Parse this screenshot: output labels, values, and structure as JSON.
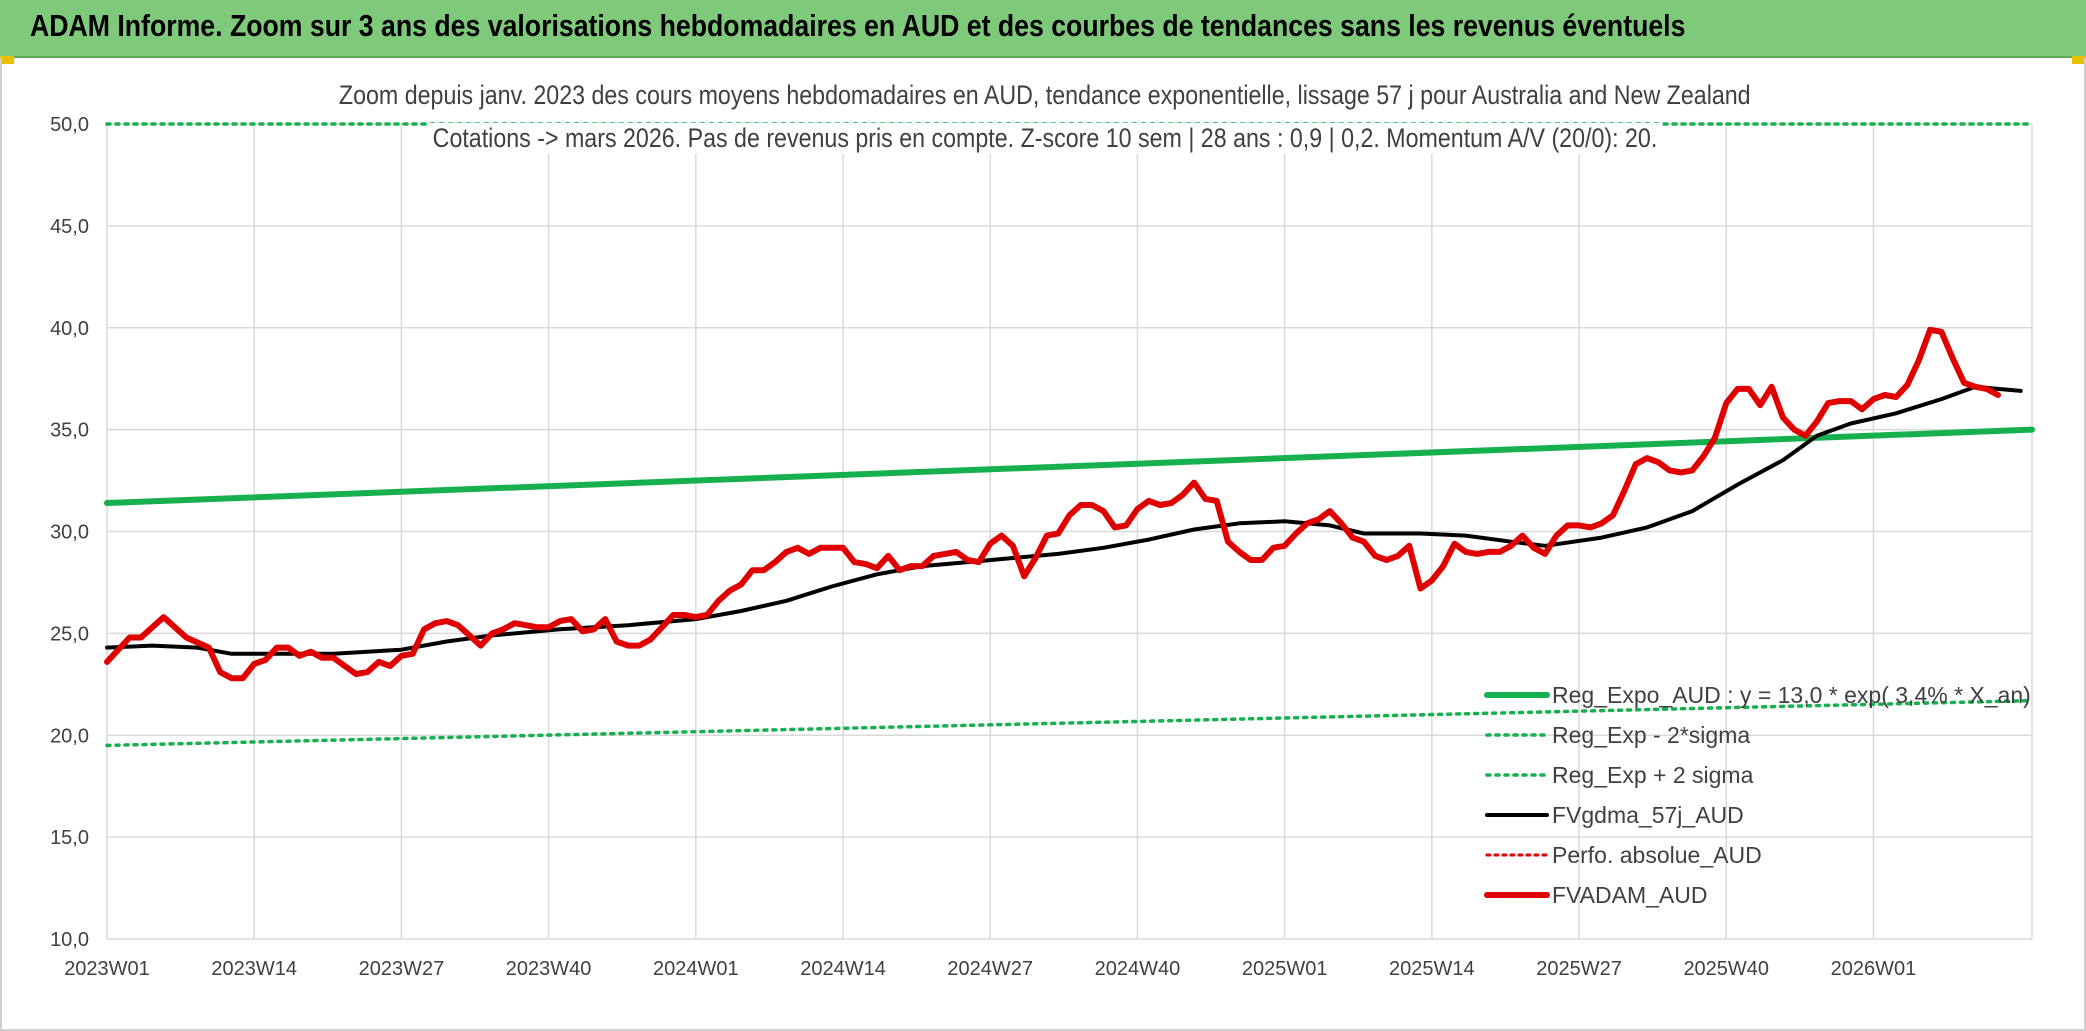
{
  "header": {
    "title": "ADAM Informe. Zoom sur 3 ans des valorisations hebdomadaires en AUD et des courbes de tendances sans les revenus éventuels"
  },
  "colors": {
    "header_bg": "#7fc97a",
    "reg_expo": "#17b04f",
    "fvgdma": "#000000",
    "perfo": "#e00000",
    "fvadam": "#e00000",
    "grid": "#d9d9d9"
  },
  "chart_data": {
    "type": "line",
    "title": "Zoom depuis janv. 2023 des cours moyens hebdomadaires en AUD, tendance exponentielle, lissage 57 j pour Australia and New Zealand",
    "subtitle": "Cotations -> mars 2026. Pas de revenus pris en compte. Z-score 10 sem | 28 ans : 0,9 | 0,2. Momentum A/V (20/0): 20.",
    "ylim": [
      10,
      50
    ],
    "yticks": [
      "10,0",
      "15,0",
      "20,0",
      "25,0",
      "30,0",
      "35,0",
      "40,0",
      "45,0",
      "50,0"
    ],
    "xticks": [
      "2023W01",
      "2023W14",
      "2023W27",
      "2023W40",
      "2024W01",
      "2024W14",
      "2024W27",
      "2024W40",
      "2025W01",
      "2025W14",
      "2025W27",
      "2025W40",
      "2026W01"
    ],
    "grid": true,
    "legend_position": "bottom-right",
    "legend": [
      "Reg_Expo_AUD : y = 13,0 * exp( 3,4% * X_an)",
      "Reg_Exp - 2*sigma",
      "Reg_Exp + 2 sigma",
      "FVgdma_57j_AUD",
      "Perfo. absolue_AUD",
      "FVADAM_AUD"
    ],
    "x_week_index_note_omitted": true,
    "series": [
      {
        "name": "Reg_Expo_AUD : y = 13,0 * exp( 3,4% * X_an)",
        "style": "solid-thick",
        "color": "#17b04f",
        "points": [
          [
            0,
            31.4
          ],
          [
            170,
            35.0
          ]
        ]
      },
      {
        "name": "Reg_Exp - 2*sigma",
        "style": "dotted",
        "color": "#17b04f",
        "points": [
          [
            0,
            19.5
          ],
          [
            170,
            21.7
          ]
        ]
      },
      {
        "name": "Reg_Exp + 2 sigma",
        "style": "dotted",
        "color": "#17b04f",
        "points": [
          [
            0,
            50.0
          ],
          [
            170,
            50.0
          ]
        ]
      },
      {
        "name": "FVgdma_57j_AUD",
        "style": "solid",
        "color": "#000000",
        "points": [
          [
            0,
            24.3
          ],
          [
            4,
            24.4
          ],
          [
            8,
            24.3
          ],
          [
            11,
            24.0
          ],
          [
            13,
            24.0
          ],
          [
            20,
            24.0
          ],
          [
            26,
            24.2
          ],
          [
            30,
            24.6
          ],
          [
            34,
            24.9
          ],
          [
            40,
            25.2
          ],
          [
            46,
            25.4
          ],
          [
            52,
            25.7
          ],
          [
            56,
            26.1
          ],
          [
            60,
            26.6
          ],
          [
            64,
            27.3
          ],
          [
            68,
            27.9
          ],
          [
            72,
            28.3
          ],
          [
            76,
            28.5
          ],
          [
            80,
            28.7
          ],
          [
            84,
            28.9
          ],
          [
            88,
            29.2
          ],
          [
            92,
            29.6
          ],
          [
            96,
            30.1
          ],
          [
            100,
            30.4
          ],
          [
            104,
            30.5
          ],
          [
            108,
            30.3
          ],
          [
            111,
            29.9
          ],
          [
            116,
            29.9
          ],
          [
            120,
            29.8
          ],
          [
            124,
            29.5
          ],
          [
            127,
            29.3
          ],
          [
            132,
            29.7
          ],
          [
            136,
            30.2
          ],
          [
            140,
            31.0
          ],
          [
            144,
            32.3
          ],
          [
            148,
            33.5
          ],
          [
            151,
            34.7
          ],
          [
            154,
            35.3
          ],
          [
            158,
            35.8
          ],
          [
            162,
            36.5
          ],
          [
            165,
            37.1
          ],
          [
            167,
            37.0
          ],
          [
            169,
            36.9
          ]
        ]
      },
      {
        "name": "FVADAM_AUD",
        "style": "solid-thick",
        "color": "#e00000",
        "points": [
          [
            0,
            23.6
          ],
          [
            2,
            24.8
          ],
          [
            3,
            24.8
          ],
          [
            5,
            25.8
          ],
          [
            7,
            24.8
          ],
          [
            9,
            24.3
          ],
          [
            10,
            23.1
          ],
          [
            11,
            22.8
          ],
          [
            12,
            22.8
          ],
          [
            13,
            23.5
          ],
          [
            14,
            23.7
          ],
          [
            15,
            24.3
          ],
          [
            16,
            24.3
          ],
          [
            17,
            23.9
          ],
          [
            18,
            24.1
          ],
          [
            19,
            23.8
          ],
          [
            20,
            23.8
          ],
          [
            21,
            23.4
          ],
          [
            22,
            23.0
          ],
          [
            23,
            23.1
          ],
          [
            24,
            23.6
          ],
          [
            25,
            23.4
          ],
          [
            26,
            23.9
          ],
          [
            27,
            24.0
          ],
          [
            28,
            25.2
          ],
          [
            29,
            25.5
          ],
          [
            30,
            25.6
          ],
          [
            31,
            25.4
          ],
          [
            32,
            24.9
          ],
          [
            33,
            24.4
          ],
          [
            34,
            25.0
          ],
          [
            35,
            25.2
          ],
          [
            36,
            25.5
          ],
          [
            37,
            25.4
          ],
          [
            38,
            25.3
          ],
          [
            39,
            25.3
          ],
          [
            40,
            25.6
          ],
          [
            41,
            25.7
          ],
          [
            42,
            25.1
          ],
          [
            43,
            25.2
          ],
          [
            44,
            25.7
          ],
          [
            45,
            24.6
          ],
          [
            46,
            24.4
          ],
          [
            47,
            24.4
          ],
          [
            48,
            24.7
          ],
          [
            49,
            25.3
          ],
          [
            50,
            25.9
          ],
          [
            51,
            25.9
          ],
          [
            52,
            25.8
          ],
          [
            53,
            25.9
          ],
          [
            54,
            26.6
          ],
          [
            55,
            27.1
          ],
          [
            56,
            27.4
          ],
          [
            57,
            28.1
          ],
          [
            58,
            28.1
          ],
          [
            59,
            28.5
          ],
          [
            60,
            29.0
          ],
          [
            61,
            29.2
          ],
          [
            62,
            28.9
          ],
          [
            63,
            29.2
          ],
          [
            64,
            29.2
          ],
          [
            65,
            29.2
          ],
          [
            66,
            28.5
          ],
          [
            67,
            28.4
          ],
          [
            68,
            28.2
          ],
          [
            69,
            28.8
          ],
          [
            70,
            28.1
          ],
          [
            71,
            28.3
          ],
          [
            72,
            28.3
          ],
          [
            73,
            28.8
          ],
          [
            74,
            28.9
          ],
          [
            75,
            29.0
          ],
          [
            76,
            28.6
          ],
          [
            77,
            28.5
          ],
          [
            78,
            29.4
          ],
          [
            79,
            29.8
          ],
          [
            80,
            29.3
          ],
          [
            81,
            27.8
          ],
          [
            82,
            28.7
          ],
          [
            83,
            29.8
          ],
          [
            84,
            29.9
          ],
          [
            85,
            30.8
          ],
          [
            86,
            31.3
          ],
          [
            87,
            31.3
          ],
          [
            88,
            31.0
          ],
          [
            89,
            30.2
          ],
          [
            90,
            30.3
          ],
          [
            91,
            31.1
          ],
          [
            92,
            31.5
          ],
          [
            93,
            31.3
          ],
          [
            94,
            31.4
          ],
          [
            95,
            31.8
          ],
          [
            96,
            32.4
          ],
          [
            97,
            31.6
          ],
          [
            98,
            31.5
          ],
          [
            99,
            29.5
          ],
          [
            100,
            29.0
          ],
          [
            101,
            28.6
          ],
          [
            102,
            28.6
          ],
          [
            103,
            29.2
          ],
          [
            104,
            29.3
          ],
          [
            105,
            29.9
          ],
          [
            106,
            30.4
          ],
          [
            107,
            30.6
          ],
          [
            108,
            31.0
          ],
          [
            109,
            30.4
          ],
          [
            110,
            29.7
          ],
          [
            111,
            29.5
          ],
          [
            112,
            28.8
          ],
          [
            113,
            28.6
          ],
          [
            114,
            28.8
          ],
          [
            115,
            29.3
          ],
          [
            116,
            27.2
          ],
          [
            117,
            27.6
          ],
          [
            118,
            28.3
          ],
          [
            119,
            29.4
          ],
          [
            120,
            29.0
          ],
          [
            121,
            28.9
          ],
          [
            122,
            29.0
          ],
          [
            123,
            29.0
          ],
          [
            124,
            29.3
          ],
          [
            125,
            29.8
          ],
          [
            126,
            29.2
          ],
          [
            127,
            28.9
          ],
          [
            128,
            29.8
          ],
          [
            129,
            30.3
          ],
          [
            130,
            30.3
          ],
          [
            131,
            30.2
          ],
          [
            132,
            30.4
          ],
          [
            133,
            30.8
          ],
          [
            134,
            32.0
          ],
          [
            135,
            33.3
          ],
          [
            136,
            33.6
          ],
          [
            137,
            33.4
          ],
          [
            138,
            33.0
          ],
          [
            139,
            32.9
          ],
          [
            140,
            33.0
          ],
          [
            141,
            33.7
          ],
          [
            142,
            34.6
          ],
          [
            143,
            36.3
          ],
          [
            144,
            37.0
          ],
          [
            145,
            37.0
          ],
          [
            146,
            36.2
          ],
          [
            147,
            37.1
          ],
          [
            148,
            35.6
          ],
          [
            149,
            35.0
          ],
          [
            150,
            34.7
          ],
          [
            151,
            35.4
          ],
          [
            152,
            36.3
          ],
          [
            153,
            36.4
          ],
          [
            154,
            36.4
          ],
          [
            155,
            36.0
          ],
          [
            156,
            36.5
          ],
          [
            157,
            36.7
          ],
          [
            158,
            36.6
          ],
          [
            159,
            37.2
          ],
          [
            160,
            38.4
          ],
          [
            161,
            39.9
          ],
          [
            162,
            39.8
          ],
          [
            163,
            38.5
          ],
          [
            164,
            37.3
          ],
          [
            165,
            37.1
          ],
          [
            166,
            37.0
          ],
          [
            167,
            36.7
          ]
        ]
      }
    ]
  }
}
